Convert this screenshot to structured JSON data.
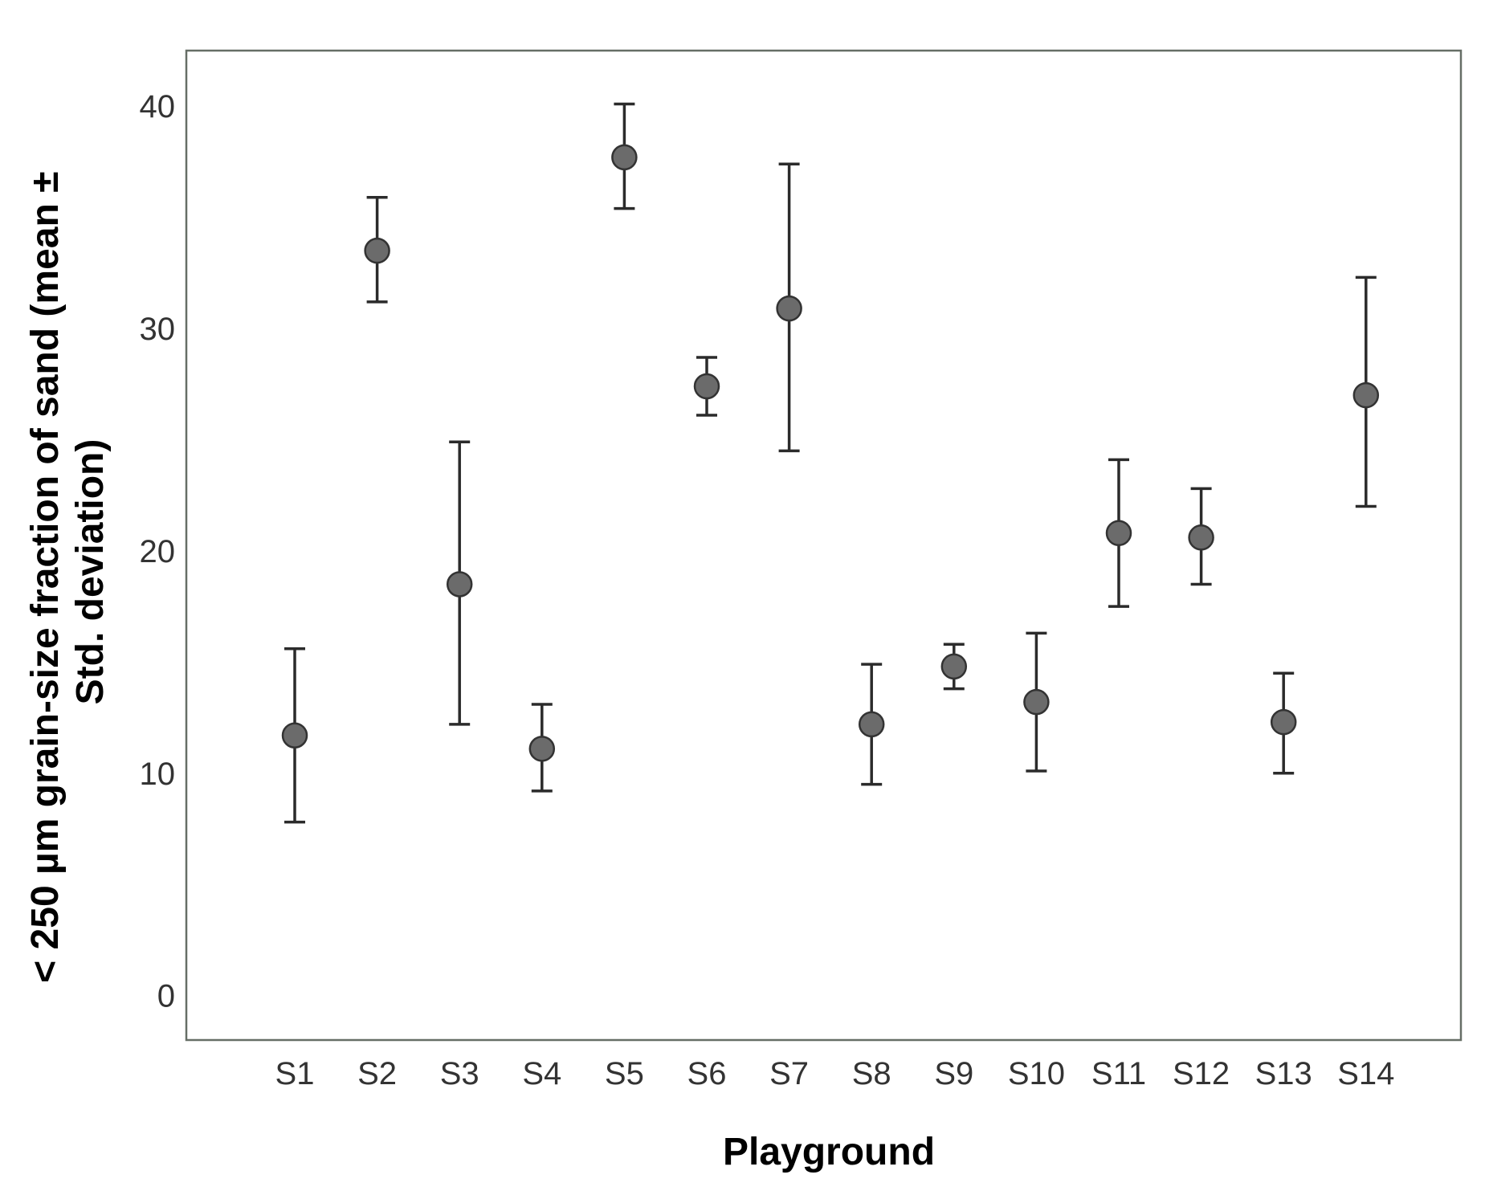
{
  "chart_data": {
    "type": "scatter",
    "title": "",
    "xlabel": "Playground",
    "ylabel_lines": [
      "< 250 µm grain-size fraction of sand (mean ±",
      "Std. deviation)"
    ],
    "categories": [
      "S1",
      "S2",
      "S3",
      "S4",
      "S5",
      "S6",
      "S7",
      "S8",
      "S9",
      "S10",
      "S11",
      "S12",
      "S13",
      "S14"
    ],
    "series": [
      {
        "mean": [
          11.7,
          33.5,
          18.5,
          11.1,
          37.7,
          27.4,
          30.9,
          12.2,
          14.8,
          13.2,
          20.8,
          20.6,
          12.3,
          27.0
        ],
        "lower": [
          7.8,
          31.2,
          12.2,
          9.2,
          35.4,
          26.1,
          24.5,
          9.5,
          13.8,
          10.1,
          17.5,
          18.5,
          10.0,
          22.0
        ],
        "upper": [
          15.6,
          35.9,
          24.9,
          13.1,
          40.1,
          28.7,
          37.4,
          14.9,
          15.8,
          16.3,
          24.1,
          22.8,
          14.5,
          32.3
        ]
      }
    ],
    "ylim": [
      -2,
      42.5
    ],
    "yticks": [
      0,
      10,
      20,
      30,
      40
    ],
    "grid": false,
    "colors": {
      "marker_fill": "#6b6b6b",
      "marker_stroke": "#333333",
      "errorbar": "#2b2b2b",
      "frame": "#666e66"
    }
  }
}
